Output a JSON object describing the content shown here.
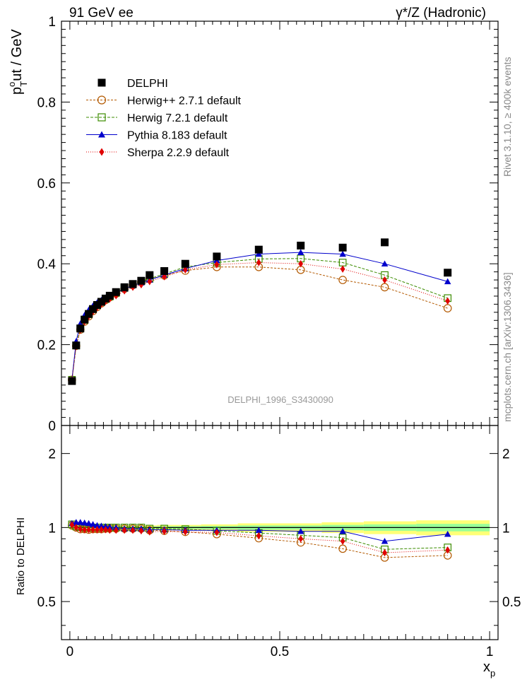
{
  "header": {
    "left": "91 GeV ee",
    "right": "γ*/Z (Hadronic)"
  },
  "side_text": {
    "top": "Rivet 3.1.10, ≥ 400k events",
    "bottom": "mcplots.cern.ch [arXiv:1306.3436]"
  },
  "watermark": "DELPHI_1996_S3430090",
  "y_axis_main": {
    "label_p": "p",
    "label_sup": "o",
    "label_sub": "T",
    "label_rest": "ut / GeV",
    "ticks": [
      "0",
      "0.2",
      "0.4",
      "0.6",
      "0.8",
      "1"
    ]
  },
  "y_axis_ratio": {
    "label": "Ratio to DELPHI",
    "ticks": [
      "0.5",
      "1",
      "2"
    ]
  },
  "x_axis": {
    "label_x": "x",
    "label_sub": "p",
    "ticks": [
      "0",
      "0.5",
      "1"
    ]
  },
  "legend": [
    {
      "name": "DELPHI",
      "marker": "square-filled",
      "color": "#000000"
    },
    {
      "name": "Herwig++ 2.7.1 default",
      "marker": "circle-open",
      "color": "#b35900"
    },
    {
      "name": "Herwig 7.2.1 default",
      "marker": "square-open",
      "color": "#3c8c00"
    },
    {
      "name": "Pythia 8.183 default",
      "marker": "triangle-filled",
      "color": "#0000cc"
    },
    {
      "name": "Sherpa 2.2.9 default",
      "marker": "diamond-filled",
      "color": "#e00000"
    }
  ],
  "chart_data": [
    {
      "type": "scatter",
      "title": "91 GeV ee  γ*/Z (Hadronic)",
      "xlabel": "x_p",
      "ylabel": "p_T^out / GeV",
      "xlim": [
        -0.02,
        1.02
      ],
      "ylim": [
        0,
        1.0
      ],
      "x": [
        0.005,
        0.015,
        0.025,
        0.035,
        0.045,
        0.055,
        0.065,
        0.075,
        0.085,
        0.095,
        0.11,
        0.13,
        0.15,
        0.17,
        0.19,
        0.225,
        0.275,
        0.35,
        0.45,
        0.55,
        0.65,
        0.75,
        0.9
      ],
      "series": [
        {
          "name": "DELPHI",
          "values": [
            0.11,
            0.198,
            0.24,
            0.262,
            0.276,
            0.288,
            0.298,
            0.306,
            0.314,
            0.321,
            0.33,
            0.342,
            0.35,
            0.358,
            0.372,
            0.382,
            0.4,
            0.418,
            0.435,
            0.445,
            0.44,
            0.453,
            0.378
          ]
        },
        {
          "name": "Herwig++ 2.7.1 default",
          "values": [
            0.113,
            0.197,
            0.237,
            0.257,
            0.27,
            0.283,
            0.293,
            0.302,
            0.31,
            0.317,
            0.326,
            0.338,
            0.347,
            0.355,
            0.362,
            0.371,
            0.383,
            0.392,
            0.392,
            0.385,
            0.36,
            0.342,
            0.29
          ]
        },
        {
          "name": "Herwig 7.2.1 default",
          "values": [
            0.113,
            0.198,
            0.24,
            0.261,
            0.275,
            0.288,
            0.298,
            0.306,
            0.313,
            0.319,
            0.328,
            0.34,
            0.349,
            0.357,
            0.363,
            0.375,
            0.392,
            0.403,
            0.412,
            0.413,
            0.403,
            0.372,
            0.315
          ]
        },
        {
          "name": "Pythia 8.183 default",
          "values": [
            0.114,
            0.208,
            0.252,
            0.273,
            0.286,
            0.296,
            0.304,
            0.31,
            0.316,
            0.322,
            0.329,
            0.338,
            0.346,
            0.353,
            0.36,
            0.372,
            0.388,
            0.408,
            0.424,
            0.428,
            0.424,
            0.4,
            0.356
          ]
        },
        {
          "name": "Sherpa 2.2.9 default",
          "values": [
            0.113,
            0.196,
            0.236,
            0.257,
            0.27,
            0.282,
            0.292,
            0.3,
            0.307,
            0.313,
            0.321,
            0.333,
            0.342,
            0.348,
            0.356,
            0.368,
            0.385,
            0.398,
            0.403,
            0.4,
            0.387,
            0.36,
            0.308
          ]
        }
      ]
    },
    {
      "type": "scatter",
      "title": "Ratio to DELPHI",
      "xlabel": "x_p",
      "ylabel": "Ratio to DELPHI",
      "scale": "log",
      "xlim": [
        -0.02,
        1.02
      ],
      "ylim": [
        0.35,
        2.6
      ],
      "x": [
        0.005,
        0.015,
        0.025,
        0.035,
        0.045,
        0.055,
        0.065,
        0.075,
        0.085,
        0.095,
        0.11,
        0.13,
        0.15,
        0.17,
        0.19,
        0.225,
        0.275,
        0.35,
        0.45,
        0.55,
        0.65,
        0.75,
        0.9
      ],
      "band_upper": [
        1.02,
        1.02,
        1.02,
        1.02,
        1.02,
        1.02,
        1.02,
        1.02,
        1.02,
        1.02,
        1.02,
        1.02,
        1.02,
        1.02,
        1.02,
        1.025,
        1.025,
        1.03,
        1.04,
        1.04,
        1.05,
        1.06,
        1.07
      ],
      "band_lower": [
        0.98,
        0.98,
        0.98,
        0.98,
        0.98,
        0.98,
        0.98,
        0.98,
        0.98,
        0.98,
        0.98,
        0.98,
        0.98,
        0.98,
        0.98,
        0.975,
        0.975,
        0.97,
        0.96,
        0.96,
        0.95,
        0.94,
        0.93
      ],
      "series": [
        {
          "name": "Herwig++ 2.7.1 default",
          "values": [
            1.02,
            1.0,
            0.985,
            0.985,
            0.98,
            0.985,
            0.985,
            0.985,
            0.99,
            0.99,
            0.99,
            0.99,
            0.99,
            0.99,
            0.975,
            0.97,
            0.96,
            0.94,
            0.905,
            0.87,
            0.82,
            0.755,
            0.77
          ]
        },
        {
          "name": "Herwig 7.2.1 default",
          "values": [
            1.03,
            1.01,
            1.005,
            1.0,
            1.0,
            1.0,
            1.0,
            1.0,
            1.0,
            1.0,
            1.0,
            1.0,
            1.0,
            1.0,
            0.99,
            0.99,
            0.985,
            0.97,
            0.95,
            0.93,
            0.91,
            0.815,
            0.83
          ]
        },
        {
          "name": "Pythia 8.183 default",
          "values": [
            1.04,
            1.05,
            1.05,
            1.045,
            1.04,
            1.03,
            1.02,
            1.015,
            1.01,
            1.005,
            1.0,
            0.99,
            0.99,
            0.99,
            0.98,
            0.98,
            0.975,
            0.975,
            0.975,
            0.965,
            0.965,
            0.88,
            0.94
          ]
        },
        {
          "name": "Sherpa 2.2.9 default",
          "values": [
            1.025,
            1.0,
            0.985,
            0.98,
            0.98,
            0.98,
            0.98,
            0.98,
            0.98,
            0.975,
            0.975,
            0.975,
            0.975,
            0.97,
            0.96,
            0.965,
            0.96,
            0.955,
            0.925,
            0.9,
            0.88,
            0.79,
            0.81
          ]
        }
      ]
    }
  ]
}
